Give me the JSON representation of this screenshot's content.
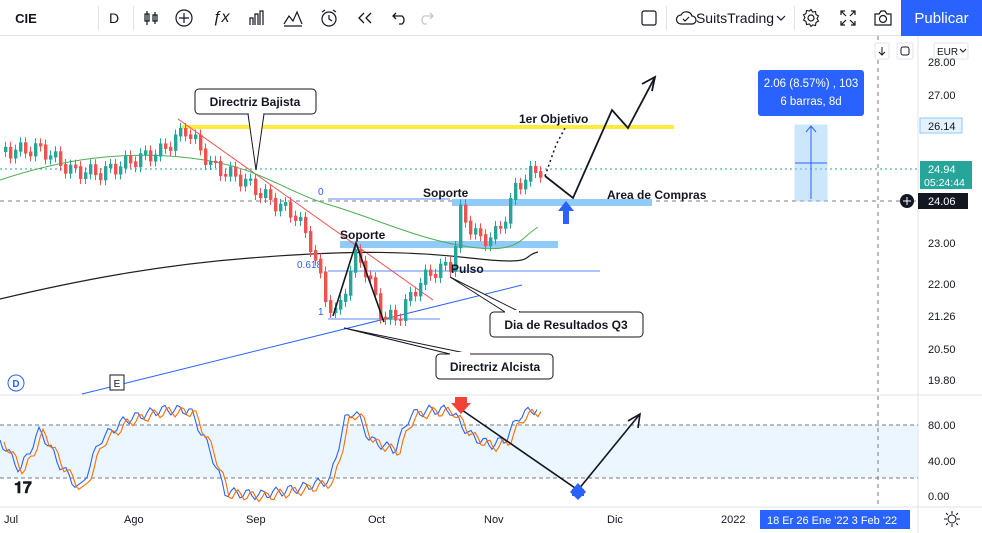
{
  "toolbar": {
    "symbol": "CIE",
    "interval": "D",
    "account": "SuitsTrading",
    "publish": "Publicar"
  },
  "price_axis": {
    "currency": "EUR",
    "ticks": [
      "28.00",
      "27.00",
      "26.14",
      "24.94",
      "24.06",
      "23.00",
      "22.00",
      "21.26",
      "20.50",
      "19.80"
    ],
    "countdown": "05:24:44"
  },
  "osc_axis": {
    "ticks": [
      "80.00",
      "40.00",
      "0.00"
    ]
  },
  "time_axis": {
    "labels": [
      "Jul",
      "Ago",
      "Sep",
      "Oct",
      "Nov",
      "Dic",
      "2022"
    ],
    "highlight": "18 Er   26 Ene '22   3 Feb '22"
  },
  "measure": {
    "line1": "2.06 (8.57%) , 103",
    "line2": "6 barras, 8d"
  },
  "annotations": {
    "directriz_bajista": "Directriz Bajista",
    "directriz_alcista": "Directriz Alcista",
    "dia_resultados": "Dia de Resultados Q3",
    "primer_objetivo": "1er Objetivo",
    "soporte_1": "Soporte",
    "soporte_2": "Soporte",
    "area_compras": "Area de Compras",
    "pulso": "Pulso",
    "fib_0": "0",
    "fib_618": "0.618",
    "fib_1": "1"
  },
  "badges": {
    "d": "D",
    "e": "E"
  },
  "colors": {
    "up": "#26a69a",
    "down": "#ef5350",
    "accent": "#2962ff",
    "yellow": "#ffeb3b",
    "support": "#90caf9"
  },
  "icons": [
    "bar-style-icon",
    "add-indicator-icon",
    "fx-icon",
    "chart-type-icon",
    "templates-icon",
    "alert-icon",
    "replay-icon",
    "undo-icon",
    "redo-icon",
    "layout-icon",
    "cloud-icon",
    "settings-icon",
    "fullscreen-icon",
    "camera-icon"
  ]
}
